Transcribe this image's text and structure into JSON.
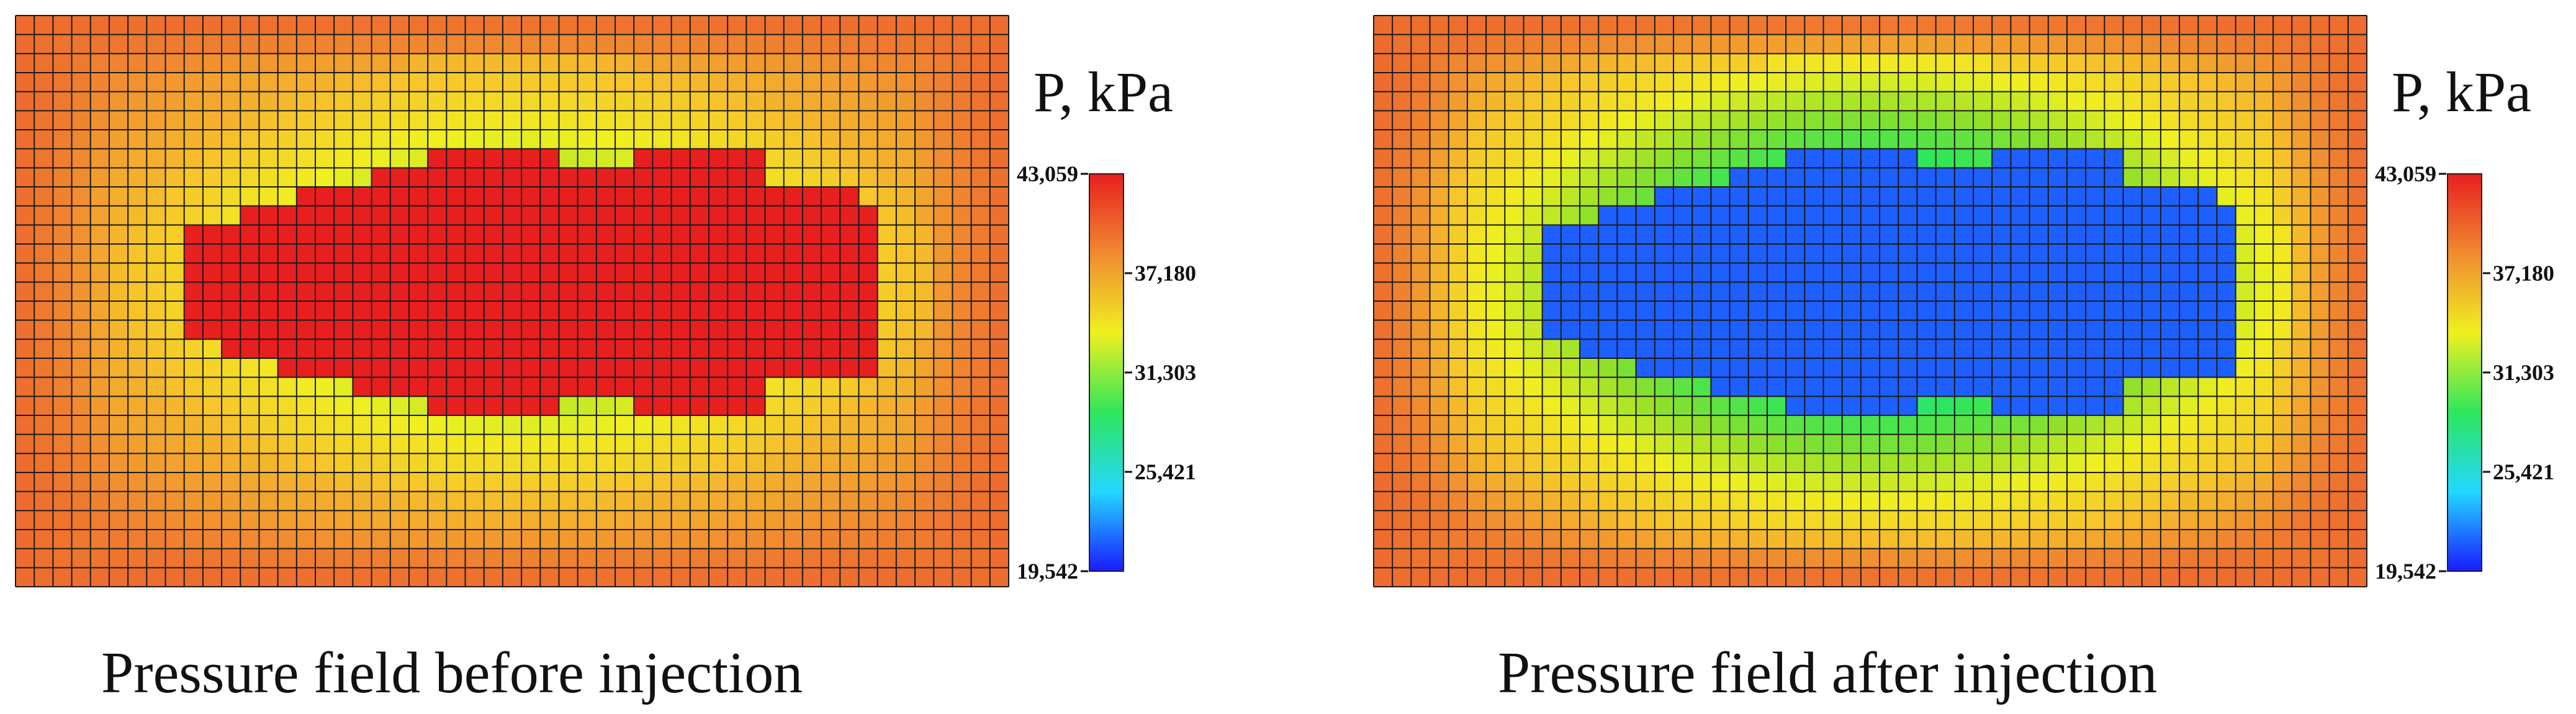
{
  "figure": {
    "panels": [
      {
        "id": "before",
        "caption": "Pressure field before injection",
        "unit_label": "P, kPa"
      },
      {
        "id": "after",
        "caption": "Pressure field after injection",
        "unit_label": "P, kPa"
      }
    ]
  },
  "chart_data": [
    {
      "type": "heatmap",
      "title": "Pressure field before injection",
      "colorbar_label": "P, kPa",
      "value_range": [
        19542,
        43059
      ],
      "colorbar_ticks": [
        "43,059",
        "37,180",
        "31,303",
        "25,421",
        "19,542"
      ],
      "colorbar_tick_values": [
        43059,
        37180,
        31303,
        25421,
        19542
      ],
      "colormap": [
        "#1a1aff",
        "#1f6bff",
        "#22d8ff",
        "#2ee65a",
        "#8fe02a",
        "#f0f020",
        "#f6c52a",
        "#f08a30",
        "#ec5a2c",
        "#e81f1f"
      ],
      "grid": {
        "cols": 53,
        "rows": 30
      },
      "field_levels": {
        "background": 38500,
        "edge": 39500,
        "ring_inner": 30500,
        "ring_outer": 36000,
        "zone": 43059
      },
      "zone_description": "high-pressure injection zone in central region"
    },
    {
      "type": "heatmap",
      "title": "Pressure field after injection",
      "colorbar_label": "P, kPa",
      "value_range": [
        19542,
        43059
      ],
      "colorbar_ticks": [
        "43,059",
        "37,180",
        "31,303",
        "25,421",
        "19,542"
      ],
      "colorbar_tick_values": [
        43059,
        37180,
        31303,
        25421,
        19542
      ],
      "colormap": [
        "#1a1aff",
        "#1f6bff",
        "#22d8ff",
        "#2ee65a",
        "#8fe02a",
        "#f0f020",
        "#f6c52a",
        "#f08a30",
        "#ec5a2c",
        "#e81f1f"
      ],
      "grid": {
        "cols": 53,
        "rows": 30
      },
      "field_levels": {
        "background": 38500,
        "edge": 39500,
        "ring_inner": 25800,
        "ring_outer": 33500,
        "zone": 21800
      },
      "zone_description": "low-pressure zone in central region after injection"
    }
  ]
}
